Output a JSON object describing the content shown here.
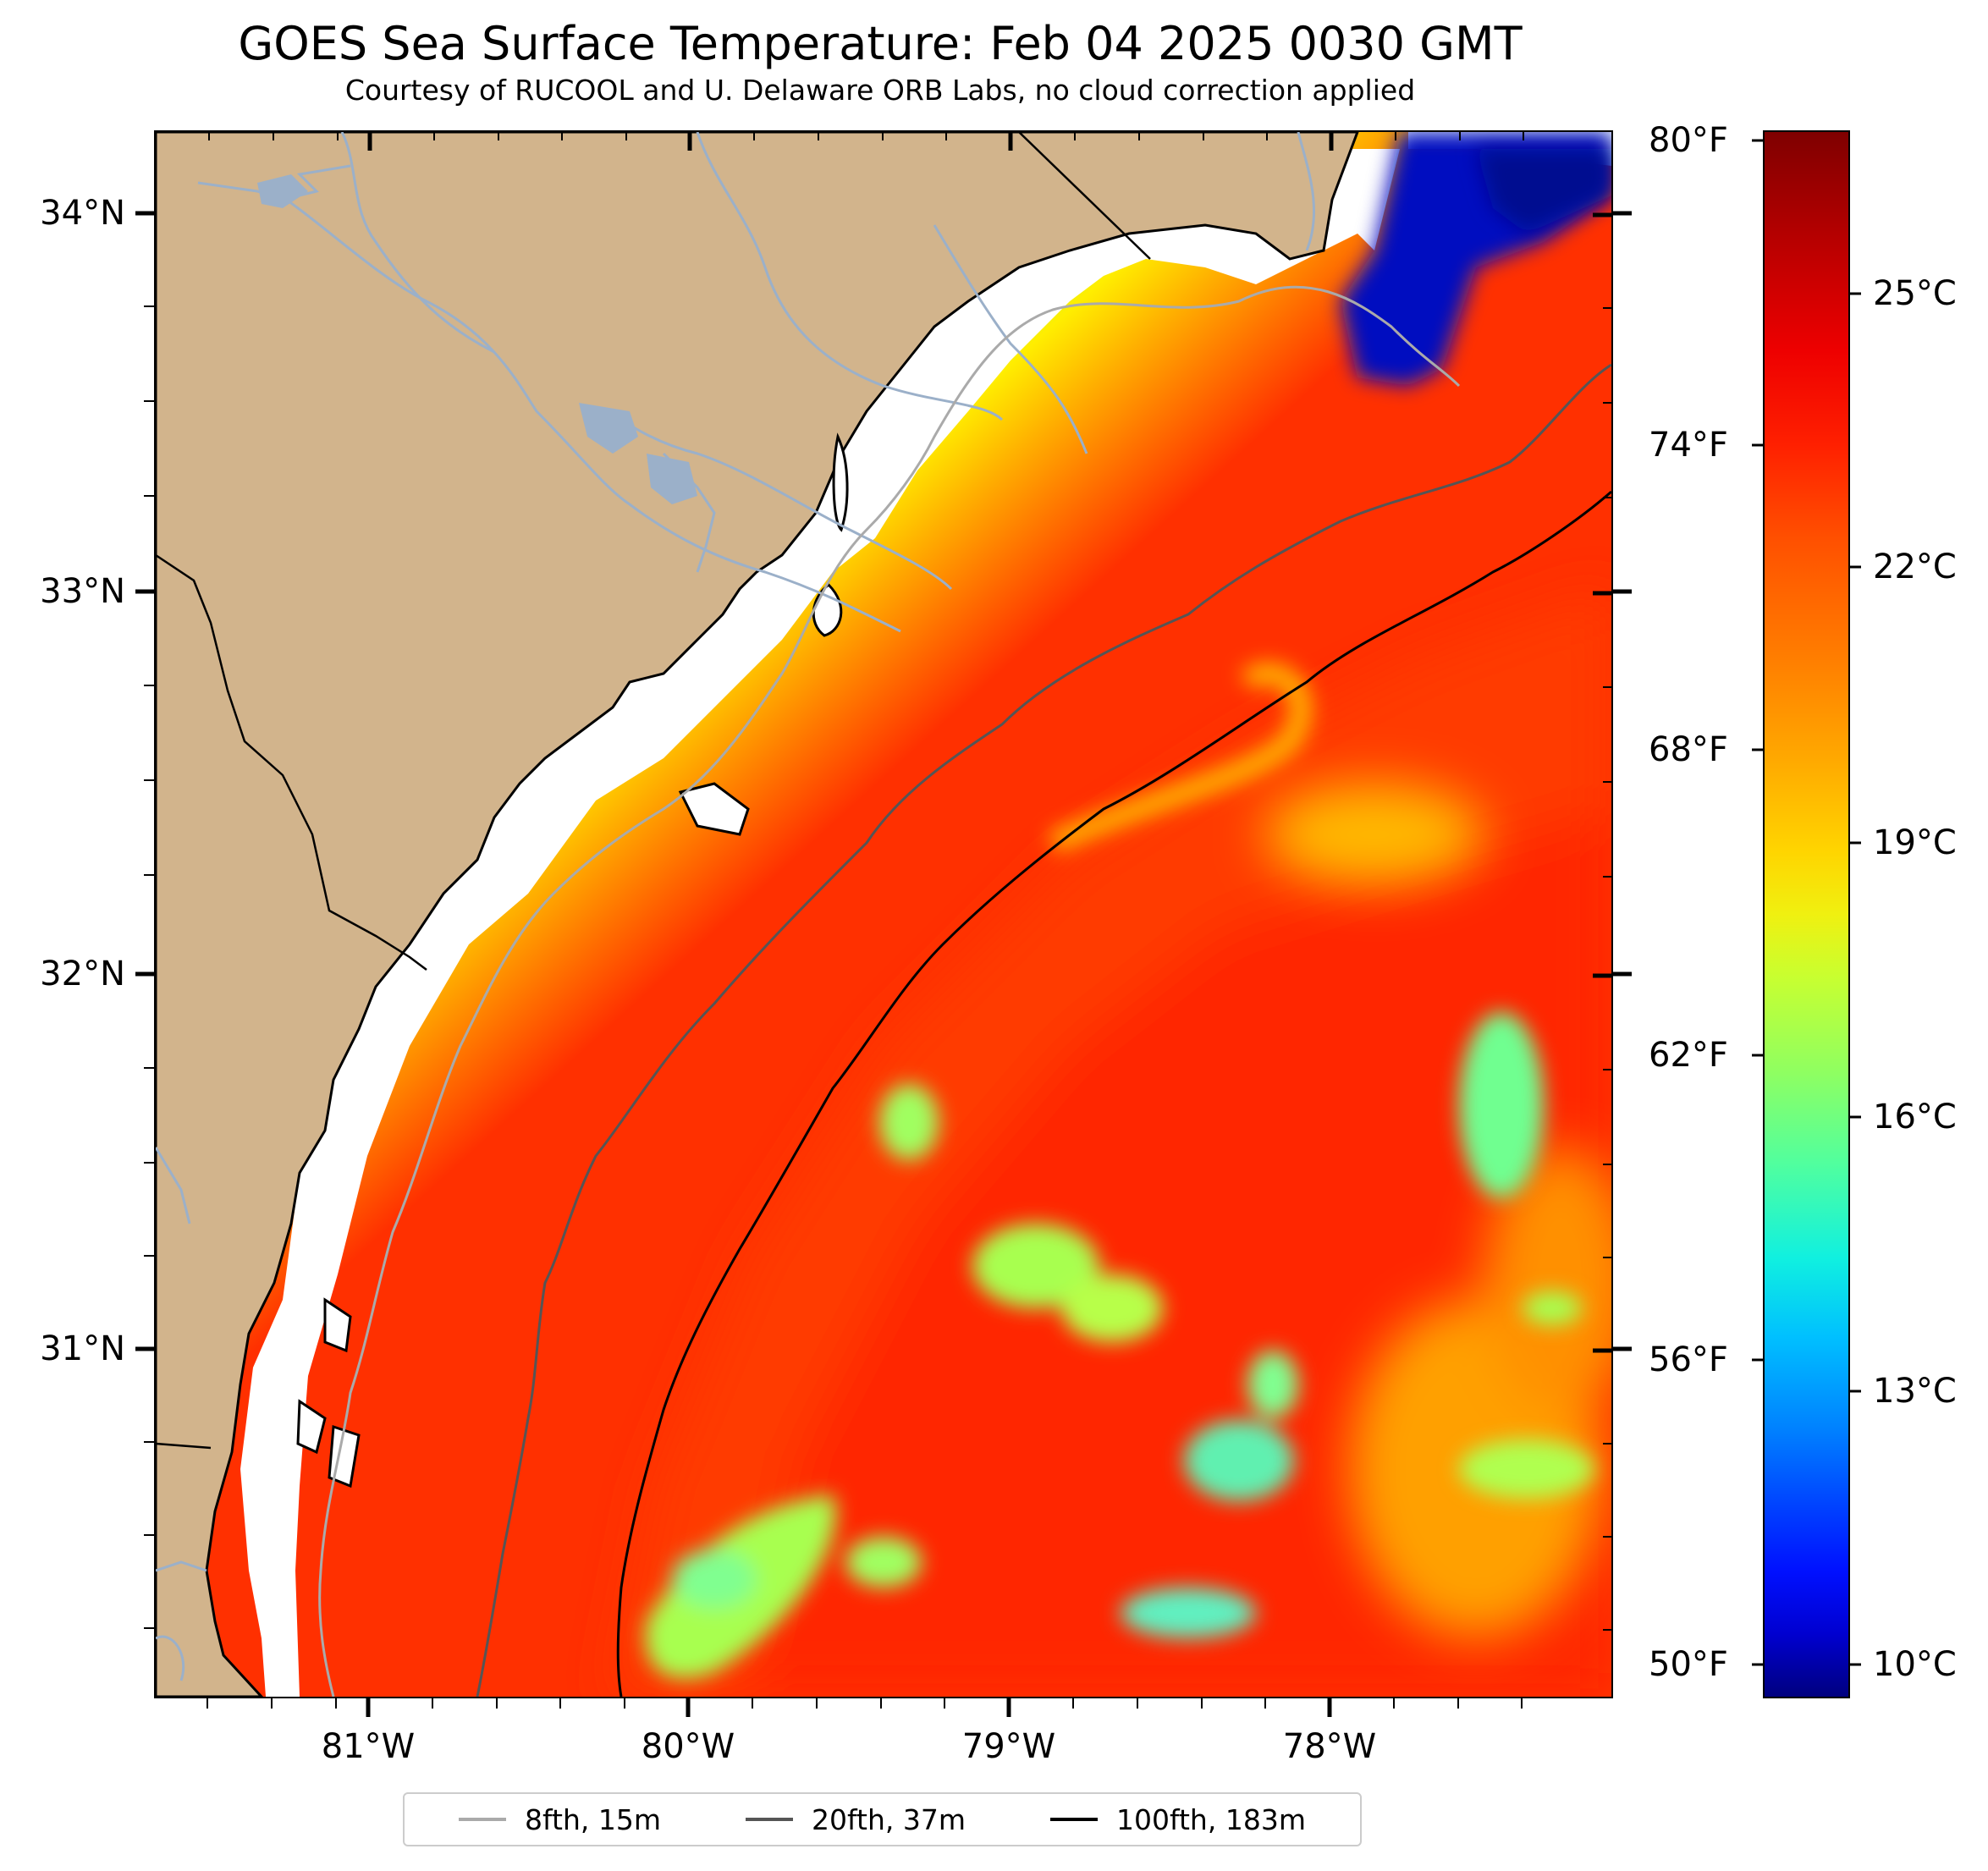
{
  "title": "GOES Sea Surface Temperature: Feb 04 2025 0030 GMT",
  "subtitle": "Courtesy of RUCOOL and U. Delaware ORB Labs, no cloud correction applied",
  "map": {
    "latitude_labels": [
      "34°N",
      "33°N",
      "32°N",
      "31°N"
    ],
    "longitude_labels": [
      "81°W",
      "80°W",
      "79°W",
      "78°W"
    ],
    "colors": {
      "land": "#d2b48c",
      "no_data": "#ffffff",
      "coastline": "#000000",
      "river": "#9bb0c9"
    }
  },
  "colorbar": {
    "fahrenheit_labels": [
      "80°F",
      "74°F",
      "68°F",
      "62°F",
      "56°F",
      "50°F"
    ],
    "celsius_labels": [
      "25°C",
      "22°C",
      "19°C",
      "16°C",
      "13°C",
      "10°C"
    ],
    "colormap": "jet"
  },
  "legend": {
    "items": [
      {
        "label": "8fth, 15m",
        "color": "#aaaaaa"
      },
      {
        "label": "20fth, 37m",
        "color": "#555555"
      },
      {
        "label": "100fth, 183m",
        "color": "#000000"
      }
    ]
  }
}
